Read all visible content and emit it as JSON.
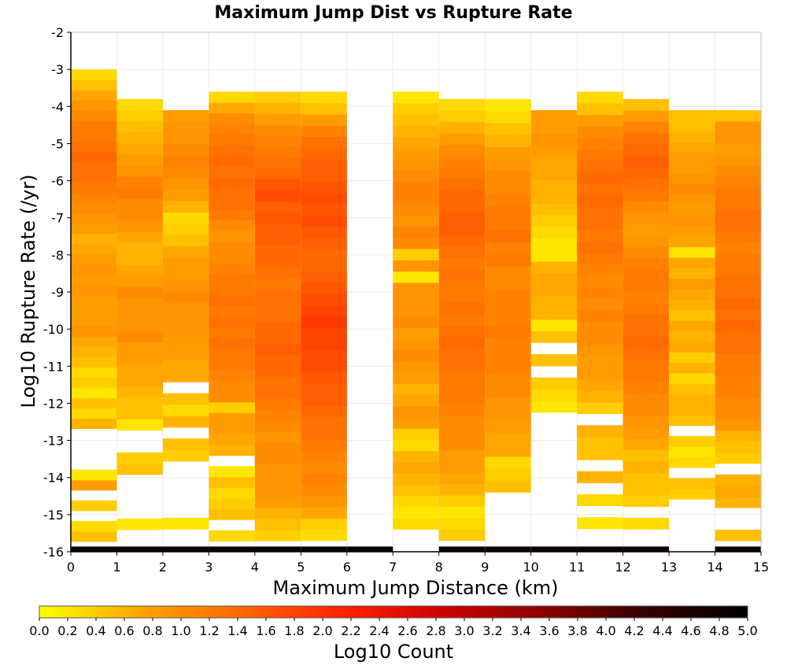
{
  "chart_data": {
    "type": "heatmap",
    "title": "Maximum Jump Dist vs Rupture Rate",
    "xlabel": "Maximum Jump Distance (km)",
    "ylabel": "Log10 Rupture Rate (/yr)",
    "colorbar_label": "Log10 Count",
    "xlim": [
      0,
      15
    ],
    "ylim": [
      -16,
      -2
    ],
    "x_ticks": [
      0,
      1,
      2,
      3,
      4,
      5,
      6,
      7,
      8,
      9,
      10,
      11,
      12,
      13,
      14,
      15
    ],
    "y_ticks": [
      -2,
      -3,
      -4,
      -5,
      -6,
      -7,
      -8,
      -9,
      -10,
      -11,
      -12,
      -13,
      -14,
      -15,
      -16
    ],
    "colorbar_range": [
      0,
      5
    ],
    "colorbar_ticks": [
      "0.0",
      "0.2",
      "0.4",
      "0.6",
      "0.8",
      "1.0",
      "1.2",
      "1.4",
      "1.6",
      "1.8",
      "2.0",
      "2.2",
      "2.4",
      "2.6",
      "2.8",
      "3.0",
      "3.2",
      "3.4",
      "3.6",
      "3.8",
      "4.0",
      "4.2",
      "4.4",
      "4.6",
      "4.8",
      "5.0"
    ],
    "colormap": [
      "#ffff00",
      "#ffa500",
      "#ff6600",
      "#ff2200",
      "#cc0000",
      "#8b0000",
      "#330000",
      "#000000"
    ],
    "x_bin_width": 1,
    "y_bin_height": 0.2857,
    "y_bin_start": -16,
    "grid": true,
    "legend": "colorbar-bottom",
    "columns": [
      {
        "x": 0,
        "top": -3.0,
        "values": [
          4.8,
          0.5,
          0.3,
          0.0,
          0.4,
          0.0,
          0.8,
          0.2,
          0.0,
          0.0,
          0.0,
          0.0,
          0.6,
          0.3,
          0.5,
          0.2,
          0.4,
          0.3,
          0.5,
          0.6,
          0.7,
          0.9,
          0.8,
          0.8,
          0.8,
          0.9,
          0.8,
          0.9,
          0.8,
          0.7,
          0.6,
          0.8,
          0.9,
          1.0,
          1.1,
          1.2,
          1.3,
          1.3,
          1.4,
          1.3,
          1.2,
          1.2,
          1.0,
          0.9,
          0.7,
          0.5,
          0.3
        ]
      },
      {
        "x": 1,
        "top": -3.8,
        "values": [
          4.8,
          0.0,
          0.2,
          0.0,
          0.0,
          0.0,
          0.0,
          0.5,
          0.4,
          0.0,
          0.0,
          0.2,
          0.5,
          0.5,
          0.6,
          0.7,
          0.7,
          0.8,
          0.8,
          1.0,
          0.9,
          0.9,
          0.9,
          1.0,
          0.8,
          0.7,
          0.6,
          0.6,
          0.7,
          0.9,
          1.0,
          1.0,
          1.2,
          1.1,
          0.9,
          0.8,
          0.7,
          0.6,
          0.5,
          0.4,
          0.3
        ]
      },
      {
        "x": 2,
        "top": -4.1,
        "values": [
          4.8,
          0.0,
          0.2,
          0.0,
          0.0,
          0.0,
          0.0,
          0.0,
          0.4,
          0.5,
          0.0,
          0.6,
          0.3,
          0.5,
          0.0,
          0.7,
          0.7,
          0.8,
          0.8,
          0.9,
          0.9,
          0.9,
          1.0,
          0.9,
          0.8,
          0.8,
          0.7,
          0.5,
          0.4,
          0.3,
          0.6,
          0.8,
          0.9,
          1.0,
          1.1,
          1.0,
          0.9,
          0.9,
          0.8
        ]
      },
      {
        "x": 3,
        "top": -3.6,
        "values": [
          4.8,
          0.3,
          0.0,
          0.5,
          0.4,
          0.3,
          0.5,
          0.2,
          0.0,
          0.6,
          0.7,
          0.8,
          0.8,
          0.4,
          1.0,
          1.0,
          1.1,
          1.2,
          1.2,
          1.3,
          1.2,
          1.3,
          1.2,
          1.3,
          1.2,
          1.2,
          1.1,
          1.0,
          1.0,
          0.9,
          1.0,
          1.2,
          1.3,
          1.3,
          1.4,
          1.3,
          1.4,
          1.3,
          1.2,
          1.1,
          1.0,
          0.7,
          0.3
        ]
      },
      {
        "x": 4,
        "top": -3.6,
        "values": [
          4.9,
          0.4,
          0.5,
          0.6,
          0.8,
          0.9,
          0.9,
          0.9,
          1.0,
          1.0,
          0.9,
          1.0,
          1.1,
          1.2,
          1.3,
          1.3,
          1.4,
          1.4,
          1.5,
          1.4,
          1.4,
          1.3,
          1.3,
          1.3,
          1.2,
          1.3,
          1.4,
          1.4,
          1.5,
          1.5,
          1.6,
          1.5,
          1.7,
          1.6,
          1.4,
          1.3,
          1.2,
          1.1,
          1.0,
          0.8,
          0.6,
          0.4
        ]
      },
      {
        "x": 5,
        "top": -3.6,
        "values": [
          4.9,
          0.3,
          0.4,
          0.7,
          0.9,
          1.0,
          1.1,
          1.0,
          1.1,
          1.2,
          1.3,
          1.3,
          1.4,
          1.5,
          1.5,
          1.6,
          1.7,
          1.7,
          1.8,
          1.8,
          1.9,
          1.8,
          1.7,
          1.6,
          1.5,
          1.4,
          1.4,
          1.5,
          1.6,
          1.7,
          1.6,
          1.7,
          1.6,
          1.5,
          1.5,
          1.4,
          1.3,
          1.1,
          0.8,
          0.5,
          0.3
        ]
      },
      {
        "x": 6,
        "top": -3.6,
        "values": [
          4.9,
          0.0,
          0.0,
          0.0,
          0.0,
          0.0,
          0.0,
          0.0,
          0.0,
          0.0,
          0.0,
          0.0,
          0.0,
          0.0,
          0.0,
          0.0,
          0.0,
          0.0,
          0.0,
          0.0,
          0.0,
          0.0,
          0.0,
          0.0,
          0.0,
          0.0,
          0.0,
          0.0,
          0.0,
          0.0,
          0.0,
          0.0,
          0.0,
          0.0,
          0.0,
          0.0,
          0.0,
          0.0,
          0.0,
          0.0,
          0.0,
          0.0
        ]
      },
      {
        "x": 7,
        "top": -3.6,
        "values": [
          0.0,
          0.0,
          0.3,
          0.2,
          0.3,
          0.5,
          0.6,
          0.7,
          0.6,
          0.3,
          0.4,
          0.8,
          0.9,
          0.7,
          0.6,
          0.8,
          0.9,
          1.0,
          0.9,
          0.8,
          1.0,
          0.9,
          0.9,
          0.9,
          0.2,
          0.9,
          0.4,
          1.0,
          1.1,
          0.9,
          1.0,
          1.1,
          1.1,
          1.0,
          0.9,
          0.8,
          0.7,
          0.6,
          0.5,
          0.4,
          0.2
        ]
      },
      {
        "x": 8,
        "top": -3.8,
        "values": [
          4.8,
          0.4,
          0.3,
          0.2,
          0.4,
          0.6,
          0.7,
          0.8,
          0.8,
          1.0,
          1.0,
          1.0,
          1.1,
          1.2,
          1.2,
          1.2,
          1.3,
          1.3,
          1.4,
          1.3,
          1.2,
          1.3,
          1.2,
          1.2,
          1.3,
          1.2,
          1.3,
          1.4,
          1.5,
          1.5,
          1.4,
          1.4,
          1.3,
          1.2,
          1.1,
          1.0,
          0.8,
          0.6,
          0.4,
          0.3
        ]
      },
      {
        "x": 9,
        "top": -3.8,
        "values": [
          4.8,
          0.0,
          0.0,
          0.0,
          0.0,
          0.5,
          0.4,
          0.3,
          0.7,
          0.7,
          0.8,
          0.9,
          0.9,
          1.0,
          1.0,
          1.1,
          1.1,
          1.1,
          1.2,
          1.1,
          1.1,
          1.1,
          1.0,
          1.0,
          1.2,
          1.1,
          1.3,
          1.2,
          1.2,
          1.1,
          1.0,
          1.0,
          0.9,
          0.8,
          0.6,
          0.5,
          0.3,
          0.2
        ]
      },
      {
        "x": 10,
        "top": -4.1,
        "values": [
          4.8,
          0.0,
          0.0,
          0.0,
          0.0,
          0.0,
          0.0,
          0.0,
          0.0,
          0.0,
          0.0,
          0.0,
          0.2,
          0.3,
          0.4,
          0.0,
          0.5,
          0.0,
          0.5,
          0.2,
          0.6,
          0.6,
          0.7,
          0.7,
          0.6,
          0.2,
          0.2,
          0.3,
          0.4,
          0.5,
          0.6,
          0.6,
          0.7,
          0.7,
          0.8,
          0.9,
          0.8,
          0.8
        ]
      },
      {
        "x": 11,
        "top": -3.6,
        "values": [
          4.8,
          0.0,
          0.2,
          0.0,
          0.3,
          0.0,
          0.6,
          0.0,
          0.5,
          0.5,
          0.6,
          0.0,
          0.4,
          0.6,
          0.7,
          0.8,
          0.8,
          0.9,
          1.0,
          1.0,
          1.1,
          1.0,
          1.1,
          1.0,
          1.1,
          1.2,
          1.3,
          1.2,
          1.3,
          1.3,
          1.4,
          1.3,
          1.4,
          1.3,
          1.2,
          1.1,
          1.0,
          0.8,
          0.5,
          0.3
        ]
      },
      {
        "x": 12,
        "top": -3.8,
        "values": [
          4.8,
          0.0,
          0.3,
          0.0,
          0.4,
          0.5,
          0.5,
          0.6,
          0.5,
          0.7,
          0.8,
          0.9,
          1.0,
          1.0,
          1.1,
          1.2,
          1.2,
          1.3,
          1.4,
          1.3,
          1.3,
          1.2,
          1.1,
          1.2,
          1.2,
          1.1,
          1.0,
          0.9,
          0.8,
          0.9,
          1.0,
          1.2,
          1.3,
          1.4,
          1.5,
          1.4,
          1.3,
          1.1,
          0.8,
          0.5
        ]
      },
      {
        "x": 13,
        "top": -4.1,
        "values": [
          0.0,
          0.0,
          0.0,
          0.0,
          0.0,
          0.4,
          0.5,
          0.0,
          0.3,
          0.2,
          0.4,
          0.0,
          0.5,
          0.6,
          0.6,
          0.5,
          0.3,
          0.6,
          0.4,
          0.7,
          0.6,
          0.7,
          0.5,
          0.6,
          0.7,
          0.8,
          0.6,
          0.7,
          0.2,
          0.7,
          0.8,
          0.9,
          0.8,
          0.9,
          1.0,
          0.9,
          0.8,
          0.8,
          0.7,
          0.6,
          0.5,
          0.5
        ]
      },
      {
        "x": 14,
        "top": -4.1,
        "values": [
          4.8,
          0.5,
          0.0,
          0.0,
          0.6,
          0.7,
          0.6,
          0.0,
          0.4,
          0.5,
          0.6,
          0.9,
          1.0,
          1.0,
          1.1,
          1.1,
          1.2,
          1.2,
          1.3,
          1.3,
          1.4,
          1.3,
          1.4,
          1.3,
          1.3,
          1.2,
          1.2,
          1.1,
          1.2,
          1.3,
          1.3,
          1.2,
          1.2,
          1.1,
          1.0,
          0.9,
          0.8,
          0.9,
          0.9,
          0.5
        ]
      }
    ]
  }
}
